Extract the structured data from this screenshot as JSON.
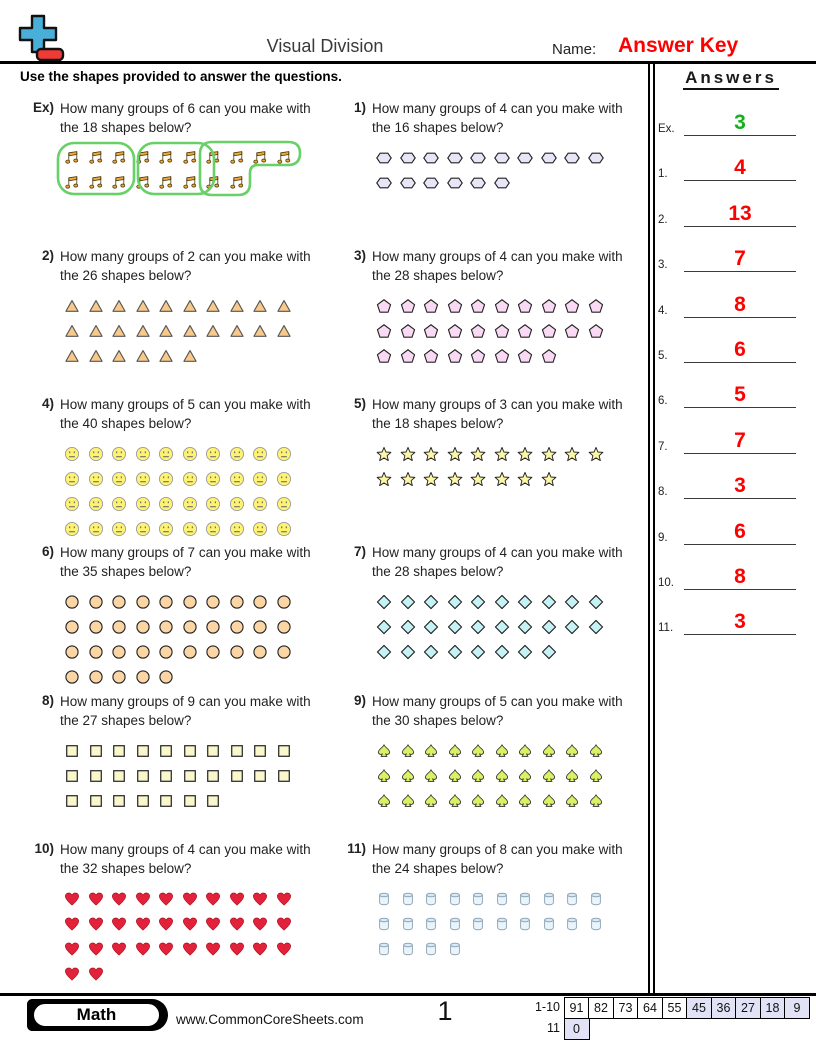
{
  "header": {
    "title": "Visual Division",
    "name_label": "Name:",
    "name_value": "Answer Key",
    "name_value_color": "#FF0000",
    "instructions": "Use the shapes provided to answer the questions."
  },
  "answers_panel": {
    "title": "Answers",
    "items": [
      {
        "label": "Ex.",
        "value": "3",
        "color": "#12B21C"
      },
      {
        "label": "1.",
        "value": "4",
        "color": "#FF0000"
      },
      {
        "label": "2.",
        "value": "13",
        "color": "#FF0000"
      },
      {
        "label": "3.",
        "value": "7",
        "color": "#FF0000"
      },
      {
        "label": "4.",
        "value": "8",
        "color": "#FF0000"
      },
      {
        "label": "5.",
        "value": "6",
        "color": "#FF0000"
      },
      {
        "label": "6.",
        "value": "5",
        "color": "#FF0000"
      },
      {
        "label": "7.",
        "value": "7",
        "color": "#FF0000"
      },
      {
        "label": "8.",
        "value": "3",
        "color": "#FF0000"
      },
      {
        "label": "9.",
        "value": "6",
        "color": "#FF0000"
      },
      {
        "label": "10.",
        "value": "8",
        "color": "#FF0000"
      },
      {
        "label": "11.",
        "value": "3",
        "color": "#FF0000"
      }
    ]
  },
  "questions": [
    {
      "number": "Ex)",
      "prompt": "How many groups of 6 can you make with the 18 shapes below?",
      "shape": "music-note",
      "shape_fill": "#F2A93B",
      "rows": [
        10,
        8
      ],
      "answer_groups_circled": 3,
      "group_outline_color": "#67D067"
    },
    {
      "number": "1)",
      "prompt": "How many groups of 4 can you make with the 16 shapes below?",
      "shape": "hexagon",
      "shape_fill": "#E6E6F7",
      "rows": [
        10,
        6
      ]
    },
    {
      "number": "2)",
      "prompt": "How many groups of 2 can you make with the 26 shapes below?",
      "shape": "triangle",
      "shape_fill": "#F8C98A",
      "rows": [
        10,
        10,
        6
      ]
    },
    {
      "number": "3)",
      "prompt": "How many groups of 4 can you make with the 28 shapes below?",
      "shape": "pentagon",
      "shape_fill": "#F9D9F3",
      "rows": [
        10,
        10,
        8
      ]
    },
    {
      "number": "4)",
      "prompt": "How many groups of 5 can you make with the 40 shapes below?",
      "shape": "smiley",
      "shape_fill": "#FDF271",
      "rows": [
        10,
        10,
        10,
        10
      ]
    },
    {
      "number": "5)",
      "prompt": "How many groups of 3 can you make with the 18 shapes below?",
      "shape": "star",
      "shape_fill": "#FCF7A6",
      "rows": [
        10,
        8
      ]
    },
    {
      "number": "6)",
      "prompt": "How many groups of 7 can you make with the 35 shapes below?",
      "shape": "circle",
      "shape_fill": "#FBD6A4",
      "rows": [
        10,
        10,
        10,
        5
      ]
    },
    {
      "number": "7)",
      "prompt": "How many groups of 4 can you make with the 28 shapes below?",
      "shape": "diamond",
      "shape_fill": "#C5F2F4",
      "rows": [
        10,
        10,
        8
      ]
    },
    {
      "number": "8)",
      "prompt": "How many groups of 9 can you make with the 27 shapes below?",
      "shape": "square",
      "shape_fill": "#F9F7CB",
      "rows": [
        10,
        10,
        7
      ]
    },
    {
      "number": "9)",
      "prompt": "How many groups of 5 can you make with the 30 shapes below?",
      "shape": "spade",
      "shape_fill": "#DBF163",
      "rows": [
        10,
        10,
        10
      ]
    },
    {
      "number": "10)",
      "prompt": "How many groups of 4 can you make with the 32 shapes below?",
      "shape": "heart",
      "shape_fill": "#E2213A",
      "rows": [
        10,
        10,
        10,
        2
      ]
    },
    {
      "number": "11)",
      "prompt": "How many groups of 8 can you make with the 24 shapes below?",
      "shape": "cylinder",
      "shape_fill": "#EAF4FB",
      "shape_fill2": "#D7EAF6",
      "rows": [
        10,
        10,
        4
      ]
    }
  ],
  "footer": {
    "subject": "Math",
    "website": "www.CommonCoreSheets.com",
    "page_number": "1",
    "score_table": {
      "highlight_color": "#E2E2F6",
      "rows": [
        {
          "label": "1-10",
          "cells": [
            {
              "value": "91",
              "highlighted": false
            },
            {
              "value": "82",
              "highlighted": false
            },
            {
              "value": "73",
              "highlighted": false
            },
            {
              "value": "64",
              "highlighted": false
            },
            {
              "value": "55",
              "highlighted": false
            },
            {
              "value": "45",
              "highlighted": true
            },
            {
              "value": "36",
              "highlighted": true
            },
            {
              "value": "27",
              "highlighted": true
            },
            {
              "value": "18",
              "highlighted": true
            },
            {
              "value": "9",
              "highlighted": true
            }
          ]
        },
        {
          "label": "11",
          "cells": [
            {
              "value": "0",
              "highlighted": true
            }
          ]
        }
      ]
    }
  }
}
